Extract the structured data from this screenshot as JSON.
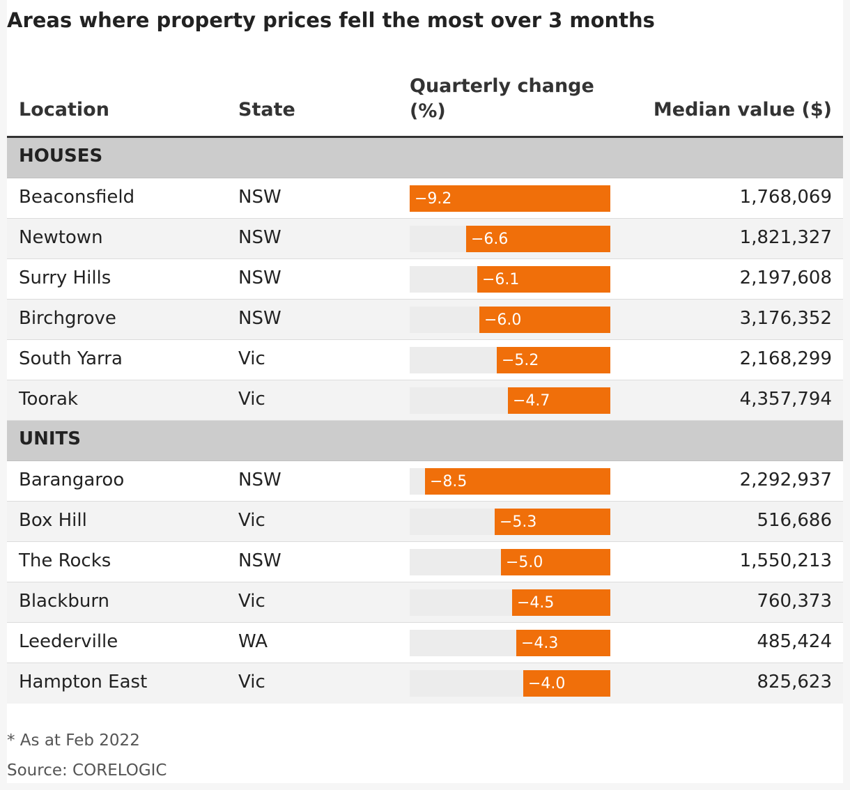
{
  "title": "Areas where property prices fell the most over 3 months",
  "headers": {
    "location": "Location",
    "state": "State",
    "change_line1": "Quarterly change",
    "change_line2": "(%)",
    "median": "Median value ($)"
  },
  "chart_data": {
    "type": "table",
    "bar_scale_max": 9.2,
    "bar_color": "#f06f0a",
    "track_color": "#ececec",
    "sections": [
      {
        "label": "HOUSES",
        "rows": [
          {
            "location": "Beaconsfield",
            "state": "NSW",
            "change": -9.2,
            "change_label": "−9.2",
            "median": "1,768,069"
          },
          {
            "location": "Newtown",
            "state": "NSW",
            "change": -6.6,
            "change_label": "−6.6",
            "median": "1,821,327"
          },
          {
            "location": "Surry Hills",
            "state": "NSW",
            "change": -6.1,
            "change_label": "−6.1",
            "median": "2,197,608"
          },
          {
            "location": "Birchgrove",
            "state": "NSW",
            "change": -6.0,
            "change_label": "−6.0",
            "median": "3,176,352"
          },
          {
            "location": "South Yarra",
            "state": "Vic",
            "change": -5.2,
            "change_label": "−5.2",
            "median": "2,168,299"
          },
          {
            "location": "Toorak",
            "state": "Vic",
            "change": -4.7,
            "change_label": "−4.7",
            "median": "4,357,794"
          }
        ]
      },
      {
        "label": "UNITS",
        "rows": [
          {
            "location": "Barangaroo",
            "state": "NSW",
            "change": -8.5,
            "change_label": "−8.5",
            "median": "2,292,937"
          },
          {
            "location": "Box Hill",
            "state": "Vic",
            "change": -5.3,
            "change_label": "−5.3",
            "median": "516,686"
          },
          {
            "location": "The Rocks",
            "state": "NSW",
            "change": -5.0,
            "change_label": "−5.0",
            "median": "1,550,213"
          },
          {
            "location": "Blackburn",
            "state": "Vic",
            "change": -4.5,
            "change_label": "−4.5",
            "median": "760,373"
          },
          {
            "location": "Leederville",
            "state": "WA",
            "change": -4.3,
            "change_label": "−4.3",
            "median": "485,424"
          },
          {
            "location": "Hampton East",
            "state": "Vic",
            "change": -4.0,
            "change_label": "−4.0",
            "median": "825,623"
          }
        ]
      }
    ]
  },
  "notes": {
    "asat": "* As at Feb 2022",
    "source": "Source: CORELOGIC"
  }
}
